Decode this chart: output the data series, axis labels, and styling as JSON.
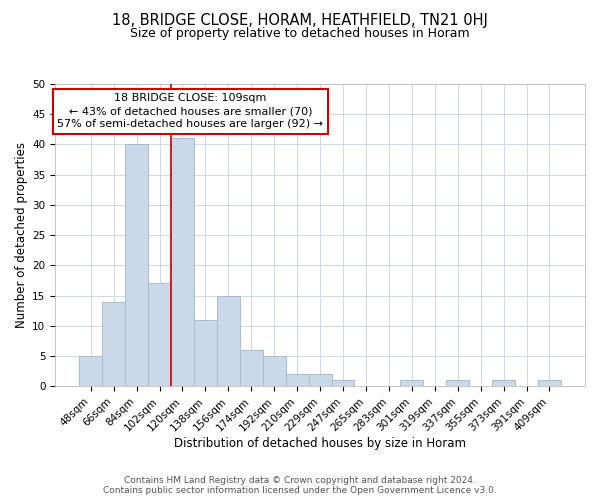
{
  "title": "18, BRIDGE CLOSE, HORAM, HEATHFIELD, TN21 0HJ",
  "subtitle": "Size of property relative to detached houses in Horam",
  "xlabel": "Distribution of detached houses by size in Horam",
  "ylabel": "Number of detached properties",
  "bar_labels": [
    "48sqm",
    "66sqm",
    "84sqm",
    "102sqm",
    "120sqm",
    "138sqm",
    "156sqm",
    "174sqm",
    "192sqm",
    "210sqm",
    "229sqm",
    "247sqm",
    "265sqm",
    "283sqm",
    "301sqm",
    "319sqm",
    "337sqm",
    "355sqm",
    "373sqm",
    "391sqm",
    "409sqm"
  ],
  "bar_values": [
    5,
    14,
    40,
    17,
    41,
    11,
    15,
    6,
    5,
    2,
    2,
    1,
    0,
    0,
    1,
    0,
    1,
    0,
    1,
    0,
    1
  ],
  "bar_color": "#c9d9ea",
  "bar_edge_color": "#a8becc",
  "vline_x": 3.5,
  "vline_color": "#cc0000",
  "annotation_text": "18 BRIDGE CLOSE: 109sqm\n← 43% of detached houses are smaller (70)\n57% of semi-detached houses are larger (92) →",
  "annotation_box_color": "#ffffff",
  "annotation_box_edge_color": "#cc0000",
  "ylim": [
    0,
    50
  ],
  "yticks": [
    0,
    5,
    10,
    15,
    20,
    25,
    30,
    35,
    40,
    45,
    50
  ],
  "footer_line1": "Contains HM Land Registry data © Crown copyright and database right 2024.",
  "footer_line2": "Contains public sector information licensed under the Open Government Licence v3.0.",
  "background_color": "#ffffff",
  "grid_color": "#cdd8e8",
  "title_fontsize": 10.5,
  "subtitle_fontsize": 9,
  "axis_label_fontsize": 8.5,
  "tick_fontsize": 7.5,
  "footer_fontsize": 6.5,
  "annot_fontsize": 8
}
